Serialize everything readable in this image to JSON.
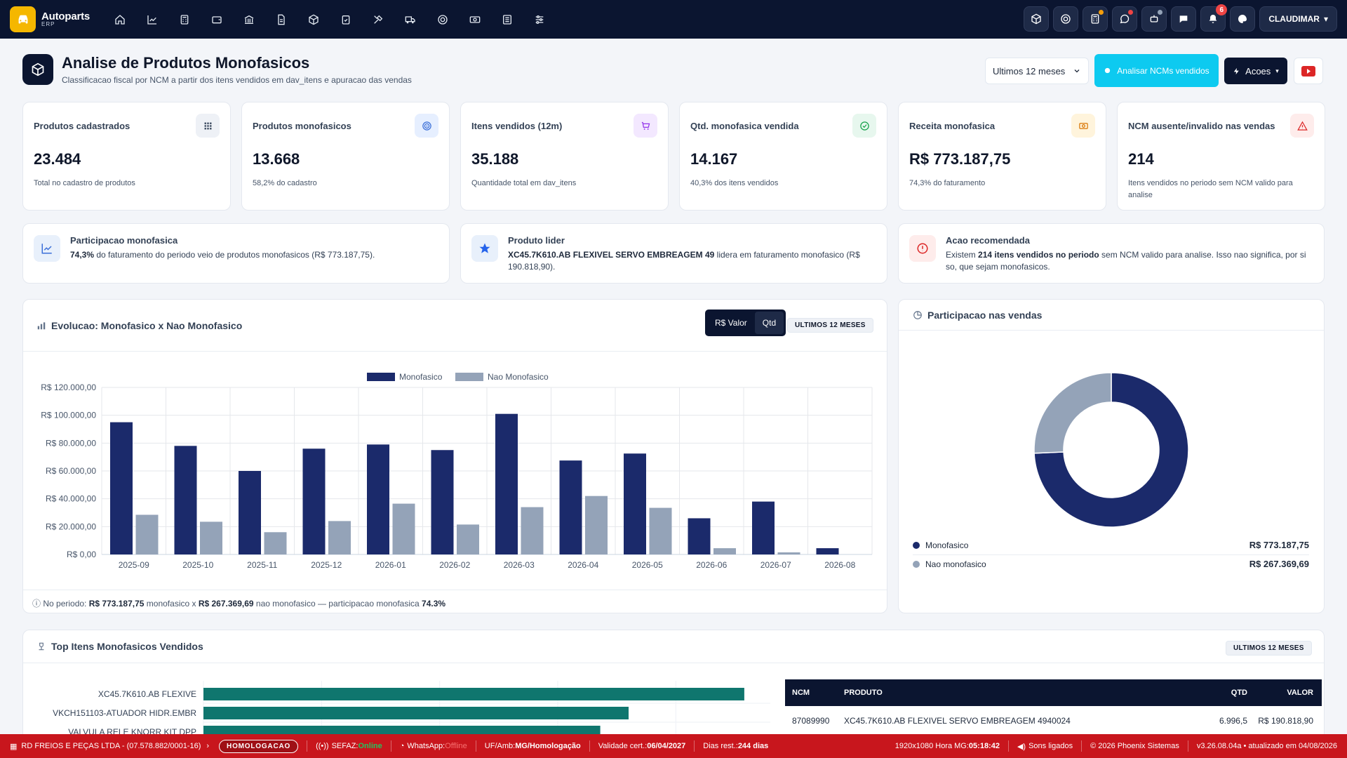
{
  "app": {
    "logo_line1": "Autoparts",
    "logo_line2": "ERP",
    "user": "CLAUDIMAR",
    "notif_count": "6"
  },
  "nav_icons": [
    "home-icon",
    "trend-chart-icon",
    "calculator-icon",
    "wallet-icon",
    "bank-icon",
    "document-icon",
    "box-icon",
    "clipboard-check-icon",
    "tools-icon",
    "truck-icon",
    "target-icon",
    "cash-icon",
    "list-icon",
    "sliders-icon"
  ],
  "page": {
    "title": "Analise de Produtos Monofasicos",
    "subtitle": "Classificacao fiscal por NCM a partir dos itens vendidos em dav_itens e apuracao das vendas",
    "period_select": "Ultimos 12 meses",
    "analyze_button": "Analisar NCMs vendidos",
    "actions_button": "Acoes"
  },
  "kpis": [
    {
      "title": "Produtos cadastrados",
      "value": "23.484",
      "sub": "Total no cadastro de produtos",
      "icon": "grid-icon",
      "bg": "#eef1f6",
      "fg": "#475569"
    },
    {
      "title": "Produtos monofasicos",
      "value": "13.668",
      "sub": "58,2% do cadastro",
      "icon": "target-icon",
      "bg": "#e6efff",
      "fg": "#3b6fd8"
    },
    {
      "title": "Itens vendidos (12m)",
      "value": "35.188",
      "sub": "Quantidade total em dav_itens",
      "icon": "cart-icon",
      "bg": "#f3e8ff",
      "fg": "#9333ea"
    },
    {
      "title": "Qtd. monofasica vendida",
      "value": "14.167",
      "sub": "40,3% dos itens vendidos",
      "icon": "check-circle-icon",
      "bg": "#e7f7ee",
      "fg": "#16a34a"
    },
    {
      "title": "Receita monofasica",
      "value": "R$ 773.187,75",
      "sub": "74,3% do faturamento",
      "icon": "money-icon",
      "bg": "#fff4dc",
      "fg": "#d97706"
    },
    {
      "title": "NCM ausente/invalido nas vendas",
      "value": "214",
      "sub": "Itens vendidos no periodo sem NCM valido para analise",
      "icon": "warning-icon",
      "bg": "#feeceb",
      "fg": "#dc2626"
    }
  ],
  "insights": [
    {
      "title": "Participacao monofasica",
      "bold": "74,3%",
      "text": " do faturamento do periodo veio de produtos monofasicos (R$ 773.187,75).",
      "icon": "trend-chart-icon"
    },
    {
      "title": "Produto lider",
      "bold": "XC45.7K610.AB FLEXIVEL SERVO EMBREAGEM 49",
      "text": " lidera em faturamento monofasico (R$ 190.818,90).",
      "icon": "star-icon"
    },
    {
      "title": "Acao recomendada",
      "pre": "Existem ",
      "bold": "214 itens vendidos no periodo",
      "text": " sem NCM valido para analise. Isso nao significa, por si so, que sejam monofasicos.",
      "icon": "alert-circle-icon"
    }
  ],
  "evolution": {
    "title": "Evolucao: Monofasico x Nao Monofasico",
    "toggle_value": "R$ Valor",
    "toggle_qty": "Qtd",
    "period_pill": "ULTIMOS 12 MESES",
    "footer_prefix": "No periodo: ",
    "footer_mono": "R$ 773.187,75",
    "footer_mid": " monofasico x ",
    "footer_non": "R$ 267.369,69",
    "footer_mid2": " nao monofasico — participacao monofasica ",
    "footer_pct": "74.3%"
  },
  "participation": {
    "title": "Participacao nas vendas",
    "items": [
      {
        "label": "Monofasico",
        "value": "R$ 773.187,75",
        "color": "#1b2a6b"
      },
      {
        "label": "Nao monofasico",
        "value": "R$ 267.369,69",
        "color": "#94a3b8"
      }
    ]
  },
  "top_items": {
    "title": "Top Itens Monofasicos Vendidos",
    "period_pill": "ULTIMOS 12 MESES",
    "table_headers": [
      "NCM",
      "PRODUTO",
      "QTD",
      "VALOR"
    ],
    "rows": [
      {
        "ncm": "87089990",
        "produto": "XC45.7K610.AB FLEXIVEL SERVO EMBREAGEM 4940024",
        "qtd": "6.996,5",
        "valor": "R$ 190.818,90"
      }
    ]
  },
  "chart_data": [
    {
      "type": "bar",
      "title": "Evolucao: Monofasico x Nao Monofasico",
      "categories": [
        "2025-09",
        "2025-10",
        "2025-11",
        "2025-12",
        "2026-01",
        "2026-02",
        "2026-03",
        "2026-04",
        "2026-05",
        "2026-06",
        "2026-07",
        "2026-08"
      ],
      "series": [
        {
          "name": "Monofasico",
          "color": "#1b2a6b",
          "values": [
            95000,
            78000,
            60000,
            76000,
            79000,
            75000,
            101000,
            67500,
            72500,
            26000,
            38000,
            4500
          ]
        },
        {
          "name": "Nao Monofasico",
          "color": "#94a3b8",
          "values": [
            28500,
            23500,
            16000,
            24000,
            36500,
            21500,
            34000,
            42000,
            33500,
            4500,
            1500,
            0
          ]
        }
      ],
      "ylim": [
        0,
        120000
      ],
      "yticks": [
        "R$ 0,00",
        "R$ 20.000,00",
        "R$ 40.000,00",
        "R$ 60.000,00",
        "R$ 80.000,00",
        "R$ 100.000,00",
        "R$ 120.000,00"
      ],
      "legend": "top-center",
      "grid": true
    },
    {
      "type": "pie",
      "title": "Participacao nas vendas",
      "categories": [
        "Monofasico",
        "Nao monofasico"
      ],
      "values": [
        773187.75,
        267369.69
      ],
      "colors": [
        "#1b2a6b",
        "#94a3b8"
      ]
    },
    {
      "type": "bar",
      "orientation": "horizontal",
      "categories": [
        "XC45.7K610.AB FLEXIVE",
        "VKCH151103-ATUADOR HIDR.EMBR",
        "VALVULA RELE KNORR KIT DPP"
      ],
      "values": [
        190818.9,
        150000,
        140000
      ],
      "color": "#0f766e"
    }
  ],
  "status": {
    "company": "RD FREIOS E PEÇAS LTDA - (07.578.882/0001-16)",
    "env_badge": "HOMOLOGACAO",
    "sefaz_label": "SEFAZ: ",
    "sefaz_value": "Online",
    "whatsapp_label": "WhatsApp: ",
    "whatsapp_value": "Offline",
    "uf_label": "UF/Amb: ",
    "uf_value": "MG/Homologação",
    "cert_label": "Validade cert.: ",
    "cert_value": "06/04/2027",
    "days_label": "Dias rest.: ",
    "days_value": "244 dias",
    "resolution_prefix": "1920x1080 Hora MG: ",
    "time": "05:18:42",
    "sound": "Sons ligados",
    "copyright": "© 2026 Phoenix Sistemas",
    "version": "v3.26.08.04a • atualizado em 04/08/2026"
  }
}
